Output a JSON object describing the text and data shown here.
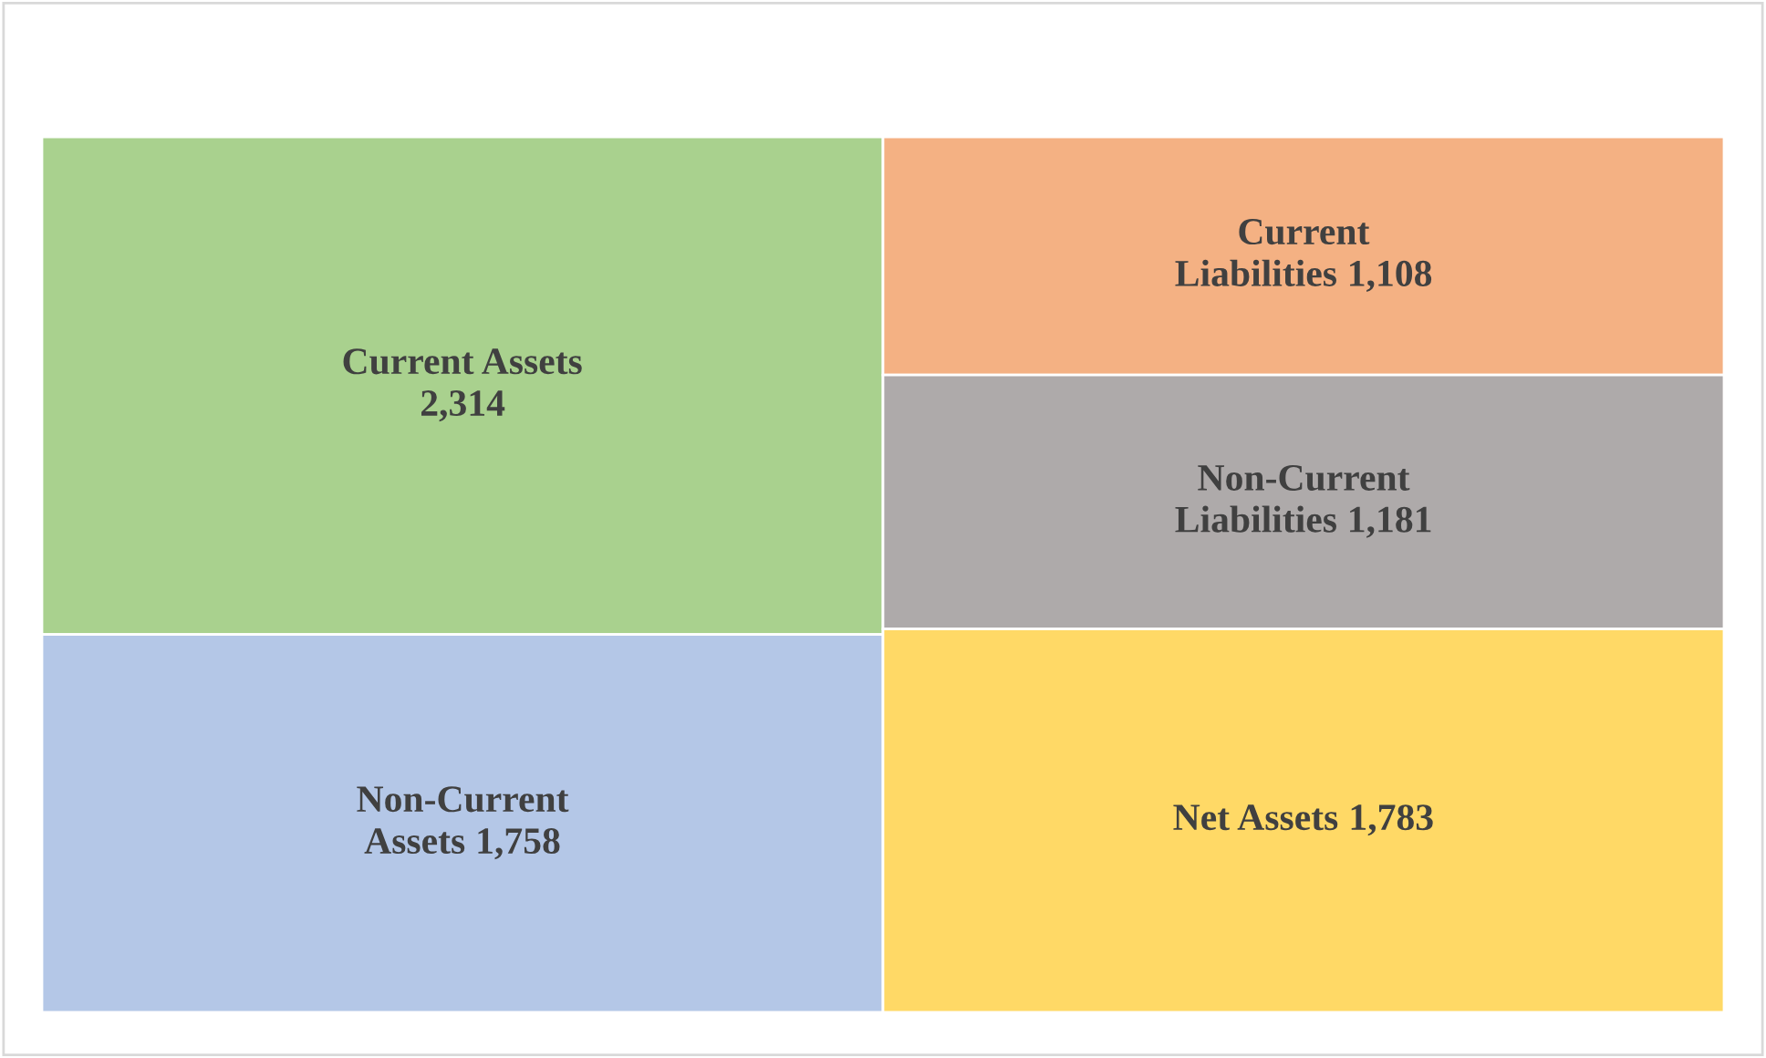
{
  "chart_data": {
    "type": "other",
    "categories": [
      "Current Assets",
      "Non-Current\nAssets",
      "Current\nLiabilities",
      "Non-Current\nLiabilities",
      "Net Assets"
    ],
    "values": [
      2314,
      1758,
      1108,
      1181,
      1783
    ],
    "value_labels": [
      "2,314",
      "1,758",
      "1,108",
      "1,181",
      "1,783"
    ],
    "colors": [
      "#a9d18e",
      "#b4c7e7",
      "#f4b183",
      "#aeaaaa",
      "#ffd966"
    ]
  }
}
